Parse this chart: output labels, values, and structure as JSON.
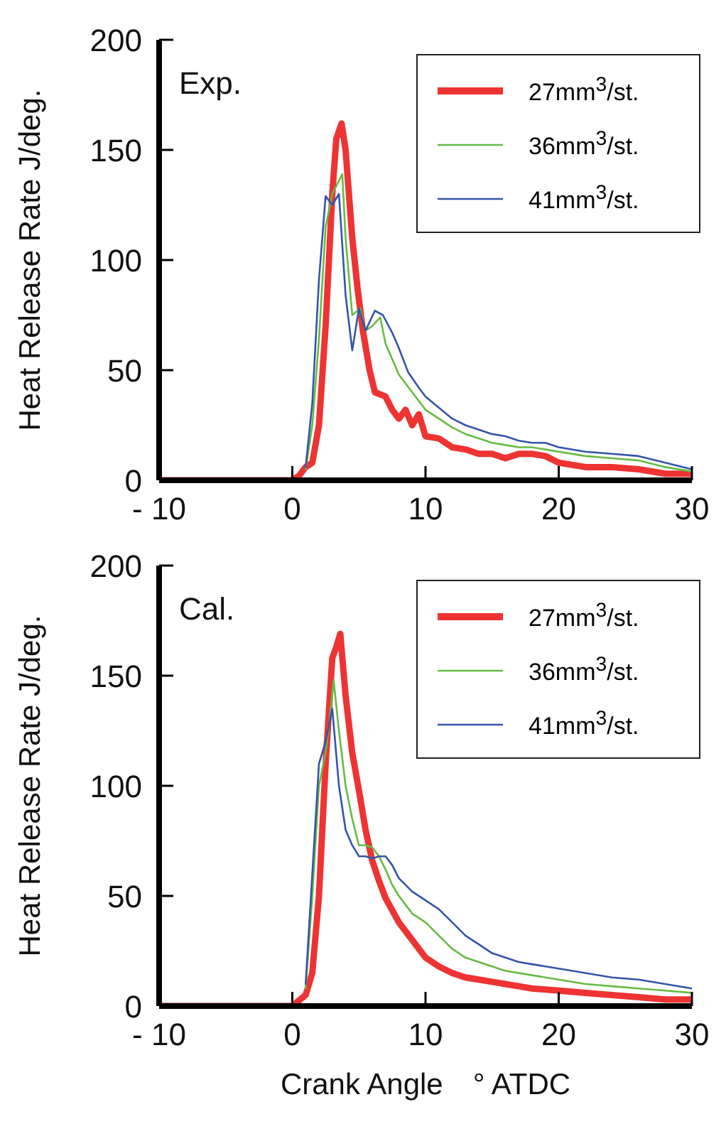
{
  "chart_data": [
    {
      "type": "line",
      "ylabel": "Heat Release Rate J/deg.",
      "annotations": [
        "Exp."
      ],
      "xlim": [
        -10,
        30
      ],
      "xticks": [
        {
          "value": -10,
          "label": "- 10"
        },
        0,
        10,
        20,
        30
      ],
      "ylim": [
        0,
        200
      ],
      "yticks": [
        0,
        50,
        100,
        150,
        200
      ],
      "legend": "top right",
      "grid": false,
      "marker": "none",
      "line_style": "solid",
      "series": [
        {
          "name": "27mm$^{3}$/st.",
          "color": "#ee3333",
          "x": [
            -10,
            0,
            0.5,
            1,
            1.5,
            2,
            2.5,
            3,
            3.3,
            3.7,
            4,
            4.5,
            4.9,
            5.3,
            5.8,
            6.2,
            7,
            7.5,
            8,
            8.5,
            9,
            9.5,
            10,
            11,
            12,
            13,
            14,
            15,
            16,
            17,
            18,
            19,
            20,
            22,
            24,
            26,
            28,
            30
          ],
          "values": [
            0,
            0,
            2,
            6,
            8,
            25,
            70,
            130,
            155,
            162,
            150,
            110,
            87,
            68,
            50,
            40,
            38,
            32,
            28,
            32,
            25,
            30,
            20,
            19,
            15,
            14,
            12,
            12,
            10,
            12,
            12,
            11,
            8,
            6,
            6,
            5,
            3,
            3
          ]
        },
        {
          "name": "36mm$^{3}$/st.",
          "color": "#66bb44",
          "x": [
            1,
            1.5,
            2,
            2.5,
            3,
            3.75,
            4,
            4.5,
            5.1,
            5.5,
            6,
            6.6,
            7,
            7.5,
            8,
            9,
            10,
            11,
            12,
            13,
            14,
            15,
            16,
            17,
            18,
            19,
            20,
            22,
            24,
            26,
            28,
            30
          ],
          "values": [
            5,
            25,
            64,
            115,
            130,
            139,
            110,
            75,
            78,
            68,
            70,
            74,
            62,
            55,
            48,
            40,
            32,
            28,
            24,
            21,
            19,
            17,
            16,
            15,
            15,
            14,
            13,
            11,
            10,
            9,
            6,
            4
          ]
        },
        {
          "name": "41mm$^{3}$/st.",
          "color": "#3355aa",
          "x": [
            1,
            1.5,
            2,
            2.5,
            3,
            3.5,
            4,
            4.5,
            5,
            5.5,
            6.2,
            6.8,
            7.5,
            8,
            8.7,
            9.5,
            10,
            11,
            12,
            13,
            14,
            15,
            16,
            17,
            18,
            19,
            20,
            22,
            24,
            26,
            28,
            30
          ],
          "values": [
            6,
            35,
            91,
            129,
            125,
            130,
            84,
            59,
            78,
            68,
            77,
            75,
            67,
            60,
            49,
            42,
            38,
            33,
            28,
            25,
            23,
            21,
            20,
            18,
            17,
            17,
            15,
            13,
            12,
            11,
            8,
            5
          ]
        }
      ]
    },
    {
      "type": "line",
      "ylabel": "Heat Release Rate J/deg.",
      "xlabel": "Crank Angle　°  ATDC",
      "annotations": [
        "Cal."
      ],
      "xlim": [
        -10,
        30
      ],
      "xticks": [
        {
          "value": -10,
          "label": "- 10"
        },
        0,
        10,
        20,
        30
      ],
      "ylim": [
        0,
        200
      ],
      "yticks": [
        0,
        50,
        100,
        150,
        200
      ],
      "legend": "top right",
      "grid": false,
      "marker": "none",
      "line_style": "solid",
      "series": [
        {
          "name": "27mm$^{3}$/st.",
          "color": "#ee3333",
          "x": [
            -10,
            0,
            1,
            1.5,
            2,
            2.5,
            3,
            3.3,
            3.6,
            4,
            4.5,
            5,
            5.5,
            6,
            6.5,
            7,
            8,
            9,
            10,
            11,
            12,
            13,
            14,
            15,
            16,
            17,
            18,
            20,
            22,
            24,
            26,
            28,
            30
          ],
          "values": [
            0,
            0,
            5,
            15,
            50,
            110,
            158,
            163,
            169,
            141,
            115,
            98,
            80,
            66,
            57,
            49,
            38,
            30,
            22,
            18,
            15,
            13,
            12,
            11,
            10,
            9,
            8,
            7,
            6,
            5,
            4,
            3,
            3
          ]
        },
        {
          "name": "36mm$^{3}$/st.",
          "color": "#66bb44",
          "x": [
            1,
            1.5,
            2,
            2.5,
            2.8,
            3.1,
            3.5,
            4,
            4.5,
            5,
            5.5,
            6,
            6.5,
            7,
            7.5,
            8,
            9,
            10,
            11,
            12,
            13,
            14,
            15,
            16,
            17,
            18,
            20,
            22,
            24,
            26,
            28,
            30
          ],
          "values": [
            8,
            50,
            100,
            115,
            130,
            148,
            125,
            100,
            85,
            73,
            73,
            72,
            68,
            62,
            55,
            50,
            42,
            38,
            32,
            26,
            22,
            20,
            18,
            16,
            15,
            14,
            12,
            10,
            9,
            8,
            7,
            6
          ]
        },
        {
          "name": "41mm$^{3}$/st.",
          "color": "#3355aa",
          "x": [
            1,
            1.5,
            2,
            2.5,
            3,
            3.5,
            4,
            4.5,
            5,
            5.5,
            6,
            6.5,
            7,
            7.5,
            8,
            9,
            10,
            11,
            12,
            13,
            14,
            15,
            16,
            17,
            18,
            20,
            22,
            24,
            26,
            28,
            30
          ],
          "values": [
            10,
            60,
            110,
            120,
            135,
            100,
            80,
            73,
            68,
            68,
            67,
            68,
            68,
            64,
            58,
            52,
            48,
            44,
            38,
            32,
            28,
            24,
            22,
            20,
            19,
            17,
            15,
            13,
            12,
            10,
            8
          ]
        }
      ]
    }
  ]
}
